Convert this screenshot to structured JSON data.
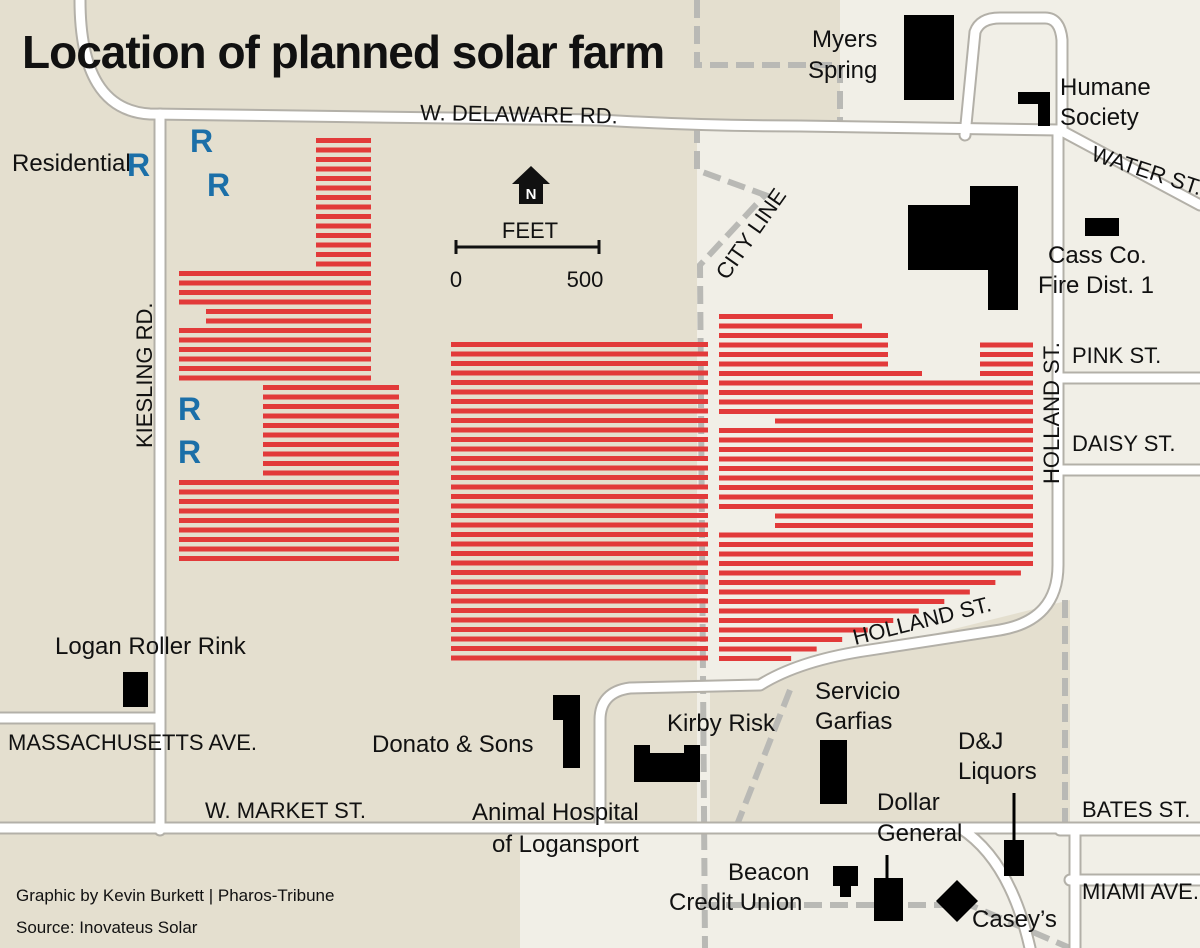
{
  "title": "Location of planned solar farm",
  "credits": {
    "graphic": "Graphic by Kevin Burkett | Pharos-Tribune",
    "source": "Source: Inovateus Solar"
  },
  "scale": {
    "title": "FEET",
    "start": "0",
    "end": "500",
    "north": "N"
  },
  "roads": {
    "delaware": "W. DELAWARE RD.",
    "water": "WATER ST.",
    "kiesling": "KIESLING RD.",
    "holland_v": "HOLLAND ST.",
    "holland_d": "HOLLAND ST.",
    "pink": "PINK ST.",
    "daisy": "DAISY ST.",
    "massachusetts": "MASSACHUSETTS AVE.",
    "market": "W. MARKET ST.",
    "bates": "BATES ST.",
    "miami": "MIAMI AVE.",
    "city_line": "CITY LINE"
  },
  "places": {
    "myers_1": "Myers",
    "myers_2": "Spring",
    "humane_1": "Humane",
    "humane_2": "Society",
    "fire_1": "Cass Co.",
    "fire_2": "Fire Dist. 1",
    "residential": "Residential",
    "residential_marker": "R",
    "roller": "Logan Roller Rink",
    "donato": "Donato & Sons",
    "kirby": "Kirby Risk",
    "servicio_1": "Servicio",
    "servicio_2": "Garfias",
    "dj_1": "D&J",
    "dj_2": "Liquors",
    "animal_1": "Animal Hospital",
    "animal_2": "of Logansport",
    "dollar_1": "Dollar",
    "dollar_2": "General",
    "beacon_1": "Beacon",
    "beacon_2": "Credit Union",
    "caseys": "Casey’s"
  },
  "colors": {
    "land": "#e4dfcf",
    "city": "#f1efe7",
    "road_fill": "#ffffff",
    "road_edge": "#b3b0a8",
    "city_line": "#b9b9b5",
    "solar": "#e23a3a",
    "building": "#000000",
    "residential": "#1b6fa8"
  },
  "legend_icons": {
    "north": "north-arrow-icon",
    "residential": "residential-marker"
  }
}
